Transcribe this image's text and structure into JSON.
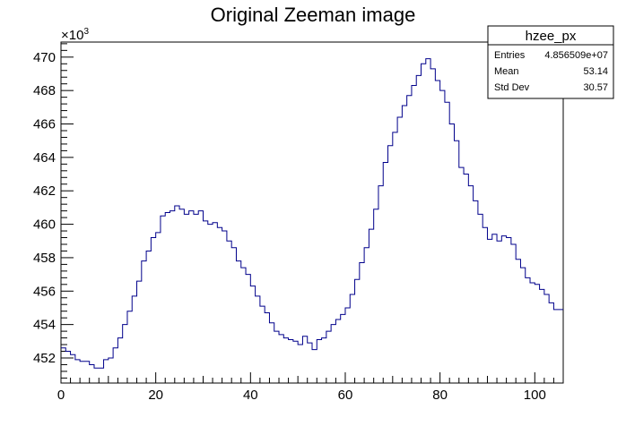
{
  "chart_data": {
    "type": "histogram",
    "title": "Original Zeeman image",
    "xlabel": "",
    "ylabel": "",
    "xlim": [
      0,
      106
    ],
    "ylim": [
      450.5,
      470.9
    ],
    "y_exponent_label": "×10",
    "y_exponent_power": "3",
    "x_ticks": [
      0,
      20,
      40,
      60,
      80,
      100
    ],
    "x_tick_labels": [
      "0",
      "20",
      "40",
      "60",
      "80",
      "100"
    ],
    "y_ticks": [
      452,
      454,
      456,
      458,
      460,
      462,
      464,
      466,
      468,
      470
    ],
    "y_tick_labels": [
      "452",
      "454",
      "456",
      "458",
      "460",
      "462",
      "464",
      "466",
      "468",
      "470"
    ],
    "line_color": "#00008b",
    "bin_width": 1,
    "values": [
      452.6,
      452.4,
      452.2,
      451.9,
      451.8,
      451.8,
      451.6,
      451.4,
      451.4,
      451.9,
      452.0,
      452.6,
      453.2,
      454.0,
      454.8,
      455.7,
      456.6,
      457.8,
      458.4,
      459.2,
      459.5,
      460.5,
      460.7,
      460.8,
      461.1,
      460.9,
      460.6,
      460.8,
      460.6,
      460.8,
      460.2,
      460.0,
      460.1,
      459.8,
      459.6,
      459.0,
      458.6,
      457.8,
      457.4,
      457.0,
      456.3,
      455.7,
      455.1,
      454.7,
      454.1,
      453.6,
      453.4,
      453.2,
      453.1,
      453.0,
      452.8,
      453.3,
      452.9,
      452.5,
      453.1,
      453.2,
      453.6,
      454.0,
      454.3,
      454.6,
      455.0,
      455.8,
      456.7,
      457.7,
      458.6,
      459.7,
      460.9,
      462.3,
      463.7,
      464.7,
      465.5,
      466.4,
      467.1,
      467.7,
      468.3,
      468.9,
      469.6,
      469.9,
      469.3,
      468.6,
      468.0,
      467.3,
      466.0,
      465.0,
      463.4,
      463.0,
      462.3,
      461.4,
      460.6,
      459.8,
      459.1,
      459.4,
      459.0,
      459.3,
      459.2,
      458.8,
      457.9,
      457.4,
      456.8,
      456.5,
      456.4,
      456.1,
      455.8,
      455.3,
      454.9,
      454.9
    ],
    "stats": {
      "name": "hzee_px",
      "rows": [
        {
          "label": "Entries",
          "value": "4.856509e+07"
        },
        {
          "label": "Mean",
          "value": "53.14"
        },
        {
          "label": "Std Dev",
          "value": "30.57"
        }
      ]
    }
  }
}
